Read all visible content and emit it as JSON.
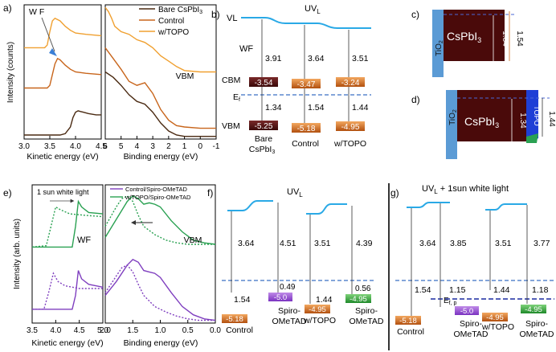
{
  "chart_data": [
    {
      "panel": "a)",
      "type": "line",
      "sub_plots": [
        {
          "name": "kinetic",
          "xlabel": "Kinetic energy (eV)",
          "ylabel": "Intensity (counts)",
          "xlim": [
            3.0,
            4.5
          ],
          "xticks": [
            "3.0",
            "3.5",
            "4.0",
            "4.5"
          ],
          "annotation": "W F",
          "series": [
            {
              "name": "bare CsPbI3",
              "color": "#4a2a12",
              "x": [
                3.0,
                3.7,
                3.8,
                3.9,
                3.95,
                4.0,
                4.05,
                4.1,
                4.15,
                4.25,
                4.4,
                4.5
              ],
              "y": [
                0.03,
                0.03,
                0.04,
                0.09,
                0.16,
                0.2,
                0.21,
                0.205,
                0.2,
                0.19,
                0.18,
                0.18
              ]
            },
            {
              "name": "Control",
              "color": "#c8651b",
              "x": [
                3.0,
                3.45,
                3.5,
                3.55,
                3.6,
                3.65,
                3.7,
                3.8,
                3.9,
                4.0,
                4.2,
                4.5
              ],
              "y": [
                0.38,
                0.38,
                0.4,
                0.48,
                0.56,
                0.6,
                0.59,
                0.55,
                0.52,
                0.5,
                0.49,
                0.48
              ]
            },
            {
              "name": "w/TOPO",
              "color": "#f0a030",
              "x": [
                3.0,
                3.4,
                3.45,
                3.5,
                3.55,
                3.6,
                3.7,
                3.8,
                3.9,
                4.0,
                4.2,
                4.5
              ],
              "y": [
                0.68,
                0.68,
                0.7,
                0.8,
                0.88,
                0.9,
                0.88,
                0.84,
                0.81,
                0.79,
                0.78,
                0.77
              ]
            }
          ]
        },
        {
          "name": "binding",
          "xlabel": "Binding energy (eV)",
          "xlim": [
            6,
            -1
          ],
          "xticks": [
            "6",
            "5",
            "4",
            "3",
            "2",
            "1",
            "0",
            "-1"
          ],
          "annotation": "VBM",
          "series": [
            {
              "name": "bare CsPbI3",
              "color": "#4a2a12",
              "x": [
                6,
                5.5,
                5,
                4.5,
                4,
                3.5,
                3,
                2.5,
                2,
                1.5,
                1,
                0,
                -1
              ],
              "y": [
                0.5,
                0.46,
                0.4,
                0.33,
                0.28,
                0.26,
                0.2,
                0.12,
                0.06,
                0.03,
                0.02,
                0.02,
                0.02
              ]
            },
            {
              "name": "Control",
              "color": "#c8651b",
              "x": [
                6,
                5.5,
                5,
                4.5,
                4,
                3.5,
                3,
                2.5,
                2,
                1.5,
                1,
                0,
                -1
              ],
              "y": [
                0.68,
                0.6,
                0.52,
                0.43,
                0.4,
                0.42,
                0.34,
                0.22,
                0.14,
                0.1,
                0.09,
                0.08,
                0.08
              ]
            },
            {
              "name": "w/TOPO",
              "color": "#f0a030",
              "x": [
                6,
                5.8,
                5.6,
                5.4,
                5,
                4.5,
                4,
                3.5,
                3,
                2.5,
                2,
                1.5,
                1,
                0,
                -1
              ],
              "y": [
                0.98,
                0.95,
                0.9,
                0.84,
                0.8,
                0.78,
                0.74,
                0.72,
                0.68,
                0.62,
                0.58,
                0.54,
                0.51,
                0.5,
                0.5
              ]
            }
          ]
        }
      ]
    },
    {
      "panel": "e)",
      "type": "line",
      "sub_plots": [
        {
          "name": "kinetic",
          "xlabel": "Kinetic energy (eV)",
          "ylabel": "Intensity (arb. units)",
          "xlim": [
            3.5,
            5.0
          ],
          "xticks": [
            "3.5",
            "4.0",
            "4.5",
            "5.0"
          ],
          "annotations": [
            "1 sun white light",
            "WF"
          ],
          "series": [
            {
              "name": "Control/Spiro-OMeTAD dark",
              "color": "#7f3fbf",
              "dash": "none",
              "x": [
                3.5,
                4.35,
                4.42,
                4.48,
                4.55,
                4.7,
                5.0
              ],
              "y": [
                0.1,
                0.1,
                0.2,
                0.38,
                0.32,
                0.28,
                0.26
              ]
            },
            {
              "name": "Control/Spiro-OMeTAD light",
              "color": "#7f3fbf",
              "dash": "dot",
              "x": [
                3.5,
                3.75,
                3.85,
                3.95,
                4.05,
                4.2,
                4.5,
                5.0
              ],
              "y": [
                0.1,
                0.1,
                0.22,
                0.36,
                0.3,
                0.27,
                0.25,
                0.25
              ]
            },
            {
              "name": "w/TOPO/Spiro-OMeTAD dark",
              "color": "#2aa152",
              "dash": "none",
              "x": [
                3.5,
                4.35,
                4.42,
                4.48,
                4.55,
                4.7,
                5.0
              ],
              "y": [
                0.55,
                0.55,
                0.7,
                0.88,
                0.84,
                0.8,
                0.79
              ]
            },
            {
              "name": "w/TOPO/Spiro-OMeTAD light",
              "color": "#2aa152",
              "dash": "dot",
              "x": [
                3.5,
                3.8,
                3.9,
                4.0,
                4.1,
                4.3,
                4.6,
                5.0
              ],
              "y": [
                0.55,
                0.56,
                0.7,
                0.84,
                0.82,
                0.79,
                0.78,
                0.77
              ]
            }
          ]
        },
        {
          "name": "binding",
          "xlabel": "Binding energy (eV)",
          "xlim": [
            2.0,
            0.0
          ],
          "xticks": [
            "2.0",
            "1.5",
            "1.0",
            "0.5",
            "0.0"
          ],
          "annotation": "VBM",
          "legend": [
            "Control/Spiro-OMeTAD",
            "w/TOPO/Spiro-OMeTAD"
          ],
          "series": [
            {
              "name": "Control/Spiro-OMeTAD dark",
              "color": "#7f3fbf",
              "dash": "none",
              "x": [
                2.0,
                1.8,
                1.6,
                1.5,
                1.4,
                1.3,
                1.2,
                1.1,
                1.0,
                0.8,
                0.6,
                0.4,
                0.2,
                0.0
              ],
              "y": [
                0.2,
                0.3,
                0.42,
                0.46,
                0.44,
                0.38,
                0.37,
                0.36,
                0.33,
                0.22,
                0.12,
                0.06,
                0.03,
                0.02
              ]
            },
            {
              "name": "Control/Spiro-OMeTAD light",
              "color": "#7f3fbf",
              "dash": "dot",
              "x": [
                2.0,
                1.8,
                1.7,
                1.6,
                1.5,
                1.4,
                1.3,
                1.1,
                0.9,
                0.7,
                0.5,
                0.3,
                0.0
              ],
              "y": [
                0.22,
                0.34,
                0.4,
                0.42,
                0.37,
                0.28,
                0.2,
                0.12,
                0.08,
                0.05,
                0.03,
                0.02,
                0.02
              ]
            },
            {
              "name": "w/TOPO/Spiro-OMeTAD dark",
              "color": "#2aa152",
              "dash": "none",
              "x": [
                2.0,
                1.8,
                1.6,
                1.5,
                1.4,
                1.3,
                1.2,
                1.1,
                1.0,
                0.8,
                0.6,
                0.4,
                0.2,
                0.0
              ],
              "y": [
                0.62,
                0.75,
                0.88,
                0.92,
                0.9,
                0.86,
                0.87,
                0.86,
                0.84,
                0.74,
                0.66,
                0.6,
                0.58,
                0.57
              ]
            },
            {
              "name": "w/TOPO/Spiro-OMeTAD light",
              "color": "#2aa152",
              "dash": "dot",
              "x": [
                2.0,
                1.8,
                1.7,
                1.6,
                1.5,
                1.4,
                1.3,
                1.1,
                0.9,
                0.7,
                0.5,
                0.3,
                0.0
              ],
              "y": [
                0.7,
                0.84,
                0.9,
                0.92,
                0.88,
                0.78,
                0.7,
                0.64,
                0.6,
                0.58,
                0.57,
                0.57,
                0.57
              ]
            }
          ]
        }
      ]
    }
  ],
  "panels": {
    "a": {
      "label": "a)"
    },
    "b": {
      "label": "b)",
      "title": "UV",
      "title_sub": "L",
      "vl": "VL",
      "wf": "WF",
      "cbm": "CBM",
      "ef": "E",
      "ef_sub": "f",
      "vbm": "VBM",
      "columns": [
        {
          "gap": "3.91",
          "cbm": "-3.54",
          "ef_gap": "1.34",
          "vbm": "-5.25",
          "name_line1": "Bare",
          "name_line2": "CsPbI",
          "name_sub": "3"
        },
        {
          "gap": "3.64",
          "cbm": "-3.47",
          "ef_gap": "1.54",
          "vbm": "-5.18",
          "name_line1": "Control",
          "name_line2": "",
          "name_sub": ""
        },
        {
          "gap": "3.51",
          "cbm": "-3.24",
          "ef_gap": "1.44",
          "vbm": "-4.95",
          "name_line1": "w/TOPO",
          "name_line2": "",
          "name_sub": ""
        }
      ],
      "colors": {
        "vl": "#2aa9e6",
        "level_dark": "#4a0f0f",
        "level_orange": "#c8651b",
        "ef_line": "#3a6fc4"
      }
    },
    "c": {
      "label": "c)",
      "tio2": "TiO",
      "tio2_sub": "2",
      "cspbi": "CsPbI",
      "cspbi_sub": "3",
      "val1": "1.34",
      "val2": "1.54"
    },
    "d": {
      "label": "d)",
      "tio2": "TiO",
      "tio2_sub": "2",
      "cspbi": "CsPbI",
      "cspbi_sub": "3",
      "val1": "1.34",
      "topo": "TOPO",
      "val2": "1.44"
    },
    "e": {
      "label": "e)"
    },
    "f": {
      "label": "f)",
      "title": "UV",
      "title_sub": "L",
      "groups": [
        {
          "gap_left": "3.64",
          "gap_right": "4.51",
          "ef_left": "1.54",
          "ef_right": "0.49",
          "vbm_left": "-5.18",
          "vbm_right": "-5.0",
          "name_left": "Control",
          "name_right1": "Spiro-",
          "name_right2": "OMeTAD"
        },
        {
          "gap_left": "3.51",
          "gap_right": "4.39",
          "ef_left": "1.44",
          "ef_right": "0.56",
          "vbm_left": "-4.95",
          "vbm_right": "-4.95",
          "name_left": "w/TOPO",
          "name_right1": "Spiro-",
          "name_right2": "OMeTAD"
        }
      ]
    },
    "g": {
      "label": "g)",
      "title": "UV",
      "title_sub": "L",
      "title_rest": " + 1sun white light",
      "efp": "E",
      "efp_sub": "f, p",
      "groups": [
        {
          "gap_left": "3.64",
          "gap_right": "3.85",
          "ef_left": "1.54",
          "ef_right": "1.15",
          "vbm_left": "-5.18",
          "vbm_right": "-5.0",
          "name_left": "Control",
          "name_right1": "Spiro-",
          "name_right2": "OMeTAD"
        },
        {
          "gap_left": "3.51",
          "gap_right": "3.77",
          "ef_left": "1.44",
          "ef_right": "1.18",
          "vbm_left": "-4.95",
          "vbm_right": "-4.95",
          "name_left": "w/TOPO",
          "name_right1": "Spiro-",
          "name_right2": "OMeTAD"
        }
      ]
    },
    "colors": {
      "purple": "#7f3fbf",
      "green": "#2aa152",
      "orange": "#c8651b",
      "dark": "#4a0f0f",
      "tio2": "#5b9bd5",
      "topo": "#1f3fd6"
    }
  }
}
